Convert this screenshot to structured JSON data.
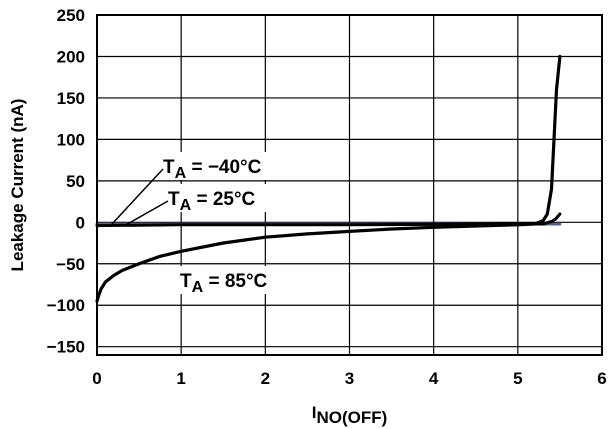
{
  "chart_data": {
    "type": "line",
    "title": "",
    "xlabel": "I",
    "xlabel_sub": "NO(OFF)",
    "ylabel": "Leakage Current (nA)",
    "xlim": [
      0,
      6
    ],
    "ylim": [
      -160,
      250
    ],
    "x_ticks": [
      0,
      1,
      2,
      3,
      4,
      5,
      6
    ],
    "x_tick_labels": [
      "0",
      "1",
      "2",
      "3",
      "4",
      "5",
      "6"
    ],
    "y_ticks": [
      250,
      200,
      150,
      100,
      50,
      0,
      -50,
      -100,
      -150
    ],
    "y_tick_labels": [
      "250",
      "200",
      "150",
      "100",
      "50",
      "0",
      "−50",
      "−100",
      "−150"
    ],
    "grid": true,
    "legend": "none",
    "series": [
      {
        "name": "TA = −40°C",
        "label_main": "T",
        "label_sub": "A",
        "label_rest": " = −40°C",
        "color": "#5a5f86",
        "x": [
          0.0,
          1.0,
          2.0,
          3.0,
          4.0,
          5.0,
          5.3,
          5.5
        ],
        "y": [
          -2,
          -2,
          -2,
          -2,
          -2,
          -2,
          -2,
          -2
        ]
      },
      {
        "name": "TA = 25°C",
        "label_main": "T",
        "label_sub": "A",
        "label_rest": " = 25°C",
        "color": "#000000",
        "x": [
          0.0,
          1.0,
          2.0,
          3.0,
          4.0,
          5.0,
          5.3,
          5.4,
          5.45,
          5.5
        ],
        "y": [
          -4,
          -3,
          -3,
          -3,
          -2.5,
          -2,
          -2,
          1,
          4,
          10
        ]
      },
      {
        "name": "TA = 85°C",
        "label_main": "T",
        "label_sub": "A",
        "label_rest": " = 85°C",
        "color": "#000000",
        "x": [
          0.0,
          0.02,
          0.05,
          0.1,
          0.2,
          0.3,
          0.5,
          0.75,
          1.0,
          1.5,
          2.0,
          2.5,
          3.0,
          3.5,
          4.0,
          4.5,
          5.0,
          5.2,
          5.3,
          5.35,
          5.4,
          5.43,
          5.46,
          5.5
        ],
        "y": [
          -95,
          -88,
          -80,
          -72,
          -64,
          -58,
          -50,
          -41,
          -35,
          -25,
          -18,
          -14,
          -11,
          -8,
          -6,
          -4.5,
          -3,
          -2,
          2,
          10,
          40,
          100,
          160,
          200
        ]
      }
    ]
  }
}
